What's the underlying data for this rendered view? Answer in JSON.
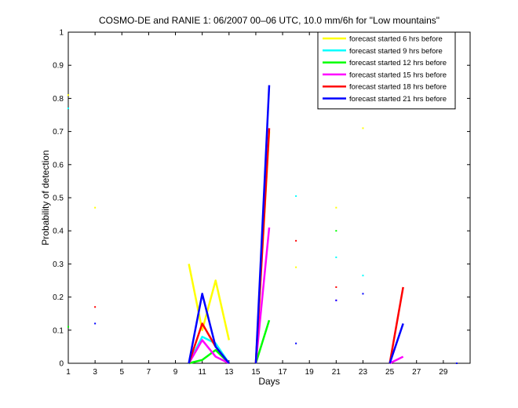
{
  "chart_data": {
    "type": "line",
    "title": "COSMO-DE and RANIE 1: 06/2007 00–06 UTC, 10.0 mm/6h for \"Low mountains\"",
    "xlabel": "Days",
    "ylabel": "Probability of detection",
    "xlim": [
      1,
      31
    ],
    "ylim": [
      0,
      1
    ],
    "xticks": [
      1,
      3,
      5,
      7,
      9,
      11,
      13,
      15,
      17,
      19,
      21,
      23,
      25,
      27,
      29
    ],
    "yticks": [
      0,
      0.1,
      0.2,
      0.3,
      0.4,
      0.5,
      0.6,
      0.7,
      0.8,
      0.9,
      1
    ],
    "grid": false,
    "legend_position": "top-right",
    "series": [
      {
        "name": "forecast started 6 hrs before",
        "color": "#ffff00",
        "segments": [
          [
            [
              10,
              0.3
            ],
            [
              11,
              0.1
            ],
            [
              12,
              0.25
            ],
            [
              13,
              0.07
            ]
          ],
          [
            [
              15,
              0.0
            ],
            [
              16,
              0.7
            ]
          ]
        ],
        "points": [
          [
            1,
            0.81
          ],
          [
            3,
            0.47
          ],
          [
            18,
            0.29
          ],
          [
            21,
            0.47
          ],
          [
            23,
            0.71
          ]
        ]
      },
      {
        "name": "forecast started 9 hrs before",
        "color": "#00ffff",
        "segments": [
          [
            [
              10,
              0.0
            ],
            [
              11,
              0.08
            ],
            [
              12,
              0.06
            ],
            [
              13,
              0.0
            ]
          ]
        ],
        "points": [
          [
            1,
            0.77
          ],
          [
            18,
            0.505
          ],
          [
            21,
            0.32
          ],
          [
            23,
            0.265
          ]
        ]
      },
      {
        "name": "forecast started 12 hrs before",
        "color": "#00ff00",
        "segments": [
          [
            [
              10,
              0.0
            ],
            [
              11,
              0.01
            ],
            [
              12,
              0.04
            ],
            [
              13,
              0.0
            ]
          ],
          [
            [
              15,
              0.0
            ],
            [
              16,
              0.13
            ]
          ]
        ],
        "points": [
          [
            1,
            0.11
          ],
          [
            21,
            0.4
          ]
        ]
      },
      {
        "name": "forecast started 15 hrs before",
        "color": "#ff00ff",
        "segments": [
          [
            [
              10,
              0.0
            ],
            [
              11,
              0.07
            ],
            [
              12,
              0.02
            ],
            [
              13,
              0.0
            ]
          ],
          [
            [
              15,
              0.0
            ],
            [
              16,
              0.41
            ]
          ],
          [
            [
              25,
              0.0
            ],
            [
              26,
              0.02
            ]
          ]
        ],
        "points": [
          [
            21,
            0.19
          ]
        ]
      },
      {
        "name": "forecast started 18 hrs before",
        "color": "#ff0000",
        "segments": [
          [
            [
              10,
              0.0
            ],
            [
              11,
              0.12
            ],
            [
              12,
              0.05
            ],
            [
              13,
              0.0
            ]
          ],
          [
            [
              15,
              0.0
            ],
            [
              16,
              0.71
            ]
          ],
          [
            [
              25,
              0.0
            ],
            [
              26,
              0.23
            ]
          ]
        ],
        "points": [
          [
            3,
            0.17
          ],
          [
            18,
            0.37
          ],
          [
            21,
            0.23
          ]
        ]
      },
      {
        "name": "forecast started 21 hrs before",
        "color": "#0000ff",
        "segments": [
          [
            [
              10,
              0.0
            ],
            [
              11,
              0.21
            ],
            [
              12,
              0.05
            ],
            [
              13,
              0.0
            ]
          ],
          [
            [
              15,
              0.0
            ],
            [
              16,
              0.84
            ]
          ],
          [
            [
              25,
              0.0
            ],
            [
              26,
              0.12
            ]
          ]
        ],
        "points": [
          [
            3,
            0.12
          ],
          [
            18,
            0.06
          ],
          [
            21,
            0.19
          ],
          [
            23,
            0.21
          ],
          [
            30,
            0.0
          ]
        ]
      }
    ]
  }
}
